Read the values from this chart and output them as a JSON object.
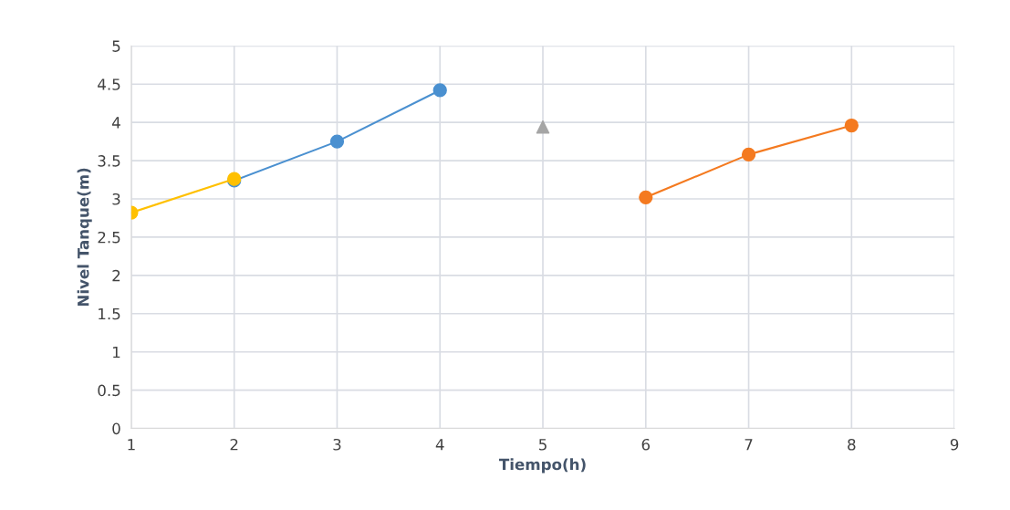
{
  "chart_data": {
    "type": "line",
    "xlabel": "Tiempo(h)",
    "ylabel": "Nivel Tanque(m)",
    "xlim": [
      1,
      9
    ],
    "xticks": [
      1,
      2,
      3,
      4,
      5,
      6,
      7,
      8,
      9
    ],
    "ylim": [
      0,
      5
    ],
    "yticks": [
      0,
      0.5,
      1,
      1.5,
      2,
      2.5,
      3,
      3.5,
      4,
      4.5,
      5
    ],
    "grid": true,
    "marker": "circle",
    "line_style": "solid",
    "series": [
      {
        "color": "#4a90d0",
        "x": [
          2,
          3,
          4
        ],
        "values": [
          3.24,
          3.75,
          4.42
        ]
      },
      {
        "color": "#ffc000",
        "x": [
          1,
          2
        ],
        "values": [
          2.82,
          3.26
        ]
      },
      {
        "type": "scatter",
        "marker": "triangle",
        "color": "#a5a5a5",
        "x": [
          5
        ],
        "values": [
          3.94
        ]
      },
      {
        "color": "#f47a20",
        "x": [
          6,
          7,
          8
        ],
        "values": [
          3.02,
          3.58,
          3.96
        ]
      }
    ]
  }
}
